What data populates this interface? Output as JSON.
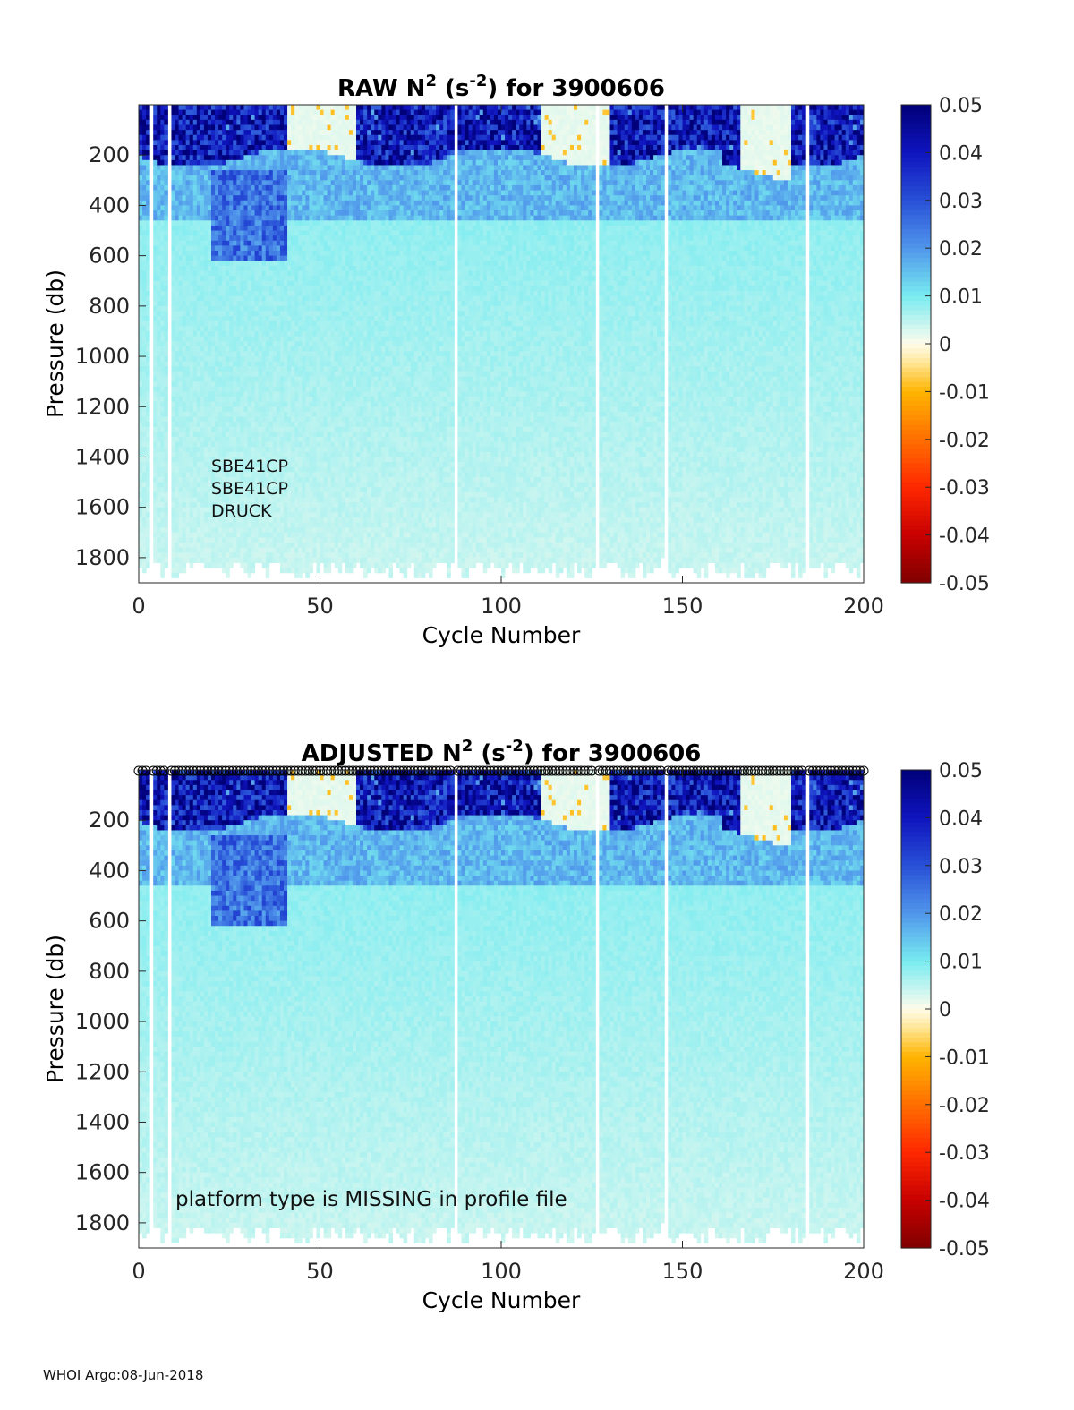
{
  "footer": "WHOI Argo:08-Jun-2018",
  "chart_data": [
    {
      "type": "heatmap",
      "title": {
        "prefix": "RAW N",
        "sup1": "2",
        "mid": " (s",
        "sup2": "-2",
        "suffix": ") for 3900606"
      },
      "xlabel": "Cycle Number",
      "ylabel": "Pressure (db)",
      "xlim": [
        0,
        200
      ],
      "ylim": [
        1900,
        0
      ],
      "xticks": [
        0,
        50,
        100,
        150,
        200
      ],
      "yticks": [
        200,
        400,
        600,
        800,
        1000,
        1200,
        1400,
        1600,
        1800
      ],
      "colorbar": {
        "range": [
          -0.05,
          0.05
        ],
        "ticks": [
          0.05,
          0.04,
          0.03,
          0.02,
          0.01,
          0,
          -0.01,
          -0.02,
          -0.03,
          -0.04,
          -0.05
        ],
        "tick_labels": [
          "0.05",
          "0.04",
          "0.03",
          "0.02",
          "0.01",
          "0",
          "-0.01",
          "-0.02",
          "-0.03",
          "-0.04",
          "-0.05"
        ],
        "colormap": "blue-cyan-white-yellow-red"
      },
      "annotations": [
        "SBE41CP",
        "SBE41CP",
        "DRUCK"
      ],
      "missing_cycles": [
        3,
        8,
        87,
        126,
        145,
        184
      ],
      "stratified_depth_profile": {
        "surface_value": 0.045,
        "thermocline_depth": 200,
        "deep_value": 0.006
      },
      "strong_stratification_band": {
        "cycles": [
          20,
          40
        ],
        "depth_range": [
          250,
          600
        ],
        "value": 0.03
      }
    },
    {
      "type": "heatmap",
      "title": {
        "prefix": "ADJUSTED N",
        "sup1": "2",
        "mid": " (s",
        "sup2": "-2",
        "suffix": ") for 3900606"
      },
      "xlabel": "Cycle Number",
      "ylabel": "Pressure (db)",
      "xlim": [
        0,
        200
      ],
      "ylim": [
        1900,
        0
      ],
      "xticks": [
        0,
        50,
        100,
        150,
        200
      ],
      "yticks": [
        200,
        400,
        600,
        800,
        1000,
        1200,
        1400,
        1600,
        1800
      ],
      "colorbar": {
        "range": [
          -0.05,
          0.05
        ],
        "ticks": [
          0.05,
          0.04,
          0.03,
          0.02,
          0.01,
          0,
          -0.01,
          -0.02,
          -0.03,
          -0.04,
          -0.05
        ],
        "tick_labels": [
          "0.05",
          "0.04",
          "0.03",
          "0.02",
          "0.01",
          "0",
          "-0.01",
          "-0.02",
          "-0.03",
          "-0.04",
          "-0.05"
        ],
        "colormap": "blue-cyan-white-yellow-red"
      },
      "annotations": [
        "platform type is MISSING in profile file"
      ],
      "surface_markers": "open circles at 0 db for each cycle",
      "missing_cycles": [
        3,
        8,
        87,
        126,
        145,
        184
      ],
      "stratified_depth_profile": {
        "surface_value": 0.045,
        "thermocline_depth": 200,
        "deep_value": 0.006
      },
      "strong_stratification_band": {
        "cycles": [
          20,
          40
        ],
        "depth_range": [
          250,
          600
        ],
        "value": 0.03
      }
    }
  ]
}
